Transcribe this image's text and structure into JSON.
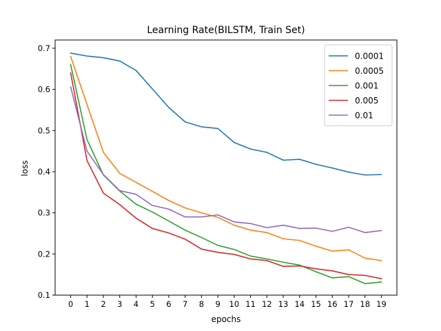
{
  "chart_data": {
    "type": "line",
    "title": "Learning Rate(BILSTM, Train Set)",
    "xlabel": "epochs",
    "ylabel": "loss",
    "x": [
      0,
      1,
      2,
      3,
      4,
      5,
      6,
      7,
      8,
      9,
      10,
      11,
      12,
      13,
      14,
      15,
      16,
      17,
      18,
      19
    ],
    "xlim": [
      -0.95,
      19.95
    ],
    "ylim": [
      0.1,
      0.72
    ],
    "yticks": [
      0.1,
      0.2,
      0.3,
      0.4,
      0.5,
      0.6,
      0.7
    ],
    "grid": false,
    "legend_position": "top-right",
    "series": [
      {
        "name": "0.0001",
        "color": "#1f77b4",
        "values": [
          0.688,
          0.681,
          0.677,
          0.669,
          0.646,
          0.601,
          0.556,
          0.521,
          0.509,
          0.505,
          0.471,
          0.455,
          0.447,
          0.428,
          0.43,
          0.418,
          0.409,
          0.399,
          0.392,
          0.393
        ]
      },
      {
        "name": "0.0005",
        "color": "#ff7f0e",
        "values": [
          0.68,
          0.563,
          0.447,
          0.396,
          0.374,
          0.352,
          0.33,
          0.312,
          0.3,
          0.289,
          0.27,
          0.258,
          0.252,
          0.237,
          0.233,
          0.219,
          0.207,
          0.21,
          0.19,
          0.184
        ]
      },
      {
        "name": "0.001",
        "color": "#2ca02c",
        "values": [
          0.66,
          0.478,
          0.392,
          0.353,
          0.321,
          0.302,
          0.28,
          0.258,
          0.24,
          0.221,
          0.211,
          0.195,
          0.188,
          0.18,
          0.173,
          0.157,
          0.142,
          0.145,
          0.128,
          0.132
        ]
      },
      {
        "name": "0.005",
        "color": "#d62728",
        "values": [
          0.64,
          0.427,
          0.348,
          0.32,
          0.287,
          0.262,
          0.251,
          0.236,
          0.212,
          0.204,
          0.199,
          0.188,
          0.184,
          0.17,
          0.171,
          0.164,
          0.159,
          0.15,
          0.148,
          0.14
        ]
      },
      {
        "name": "0.01",
        "color": "#9467bd",
        "values": [
          0.606,
          0.45,
          0.393,
          0.354,
          0.345,
          0.318,
          0.309,
          0.29,
          0.29,
          0.295,
          0.278,
          0.274,
          0.264,
          0.27,
          0.262,
          0.263,
          0.255,
          0.265,
          0.252,
          0.257
        ]
      }
    ]
  }
}
